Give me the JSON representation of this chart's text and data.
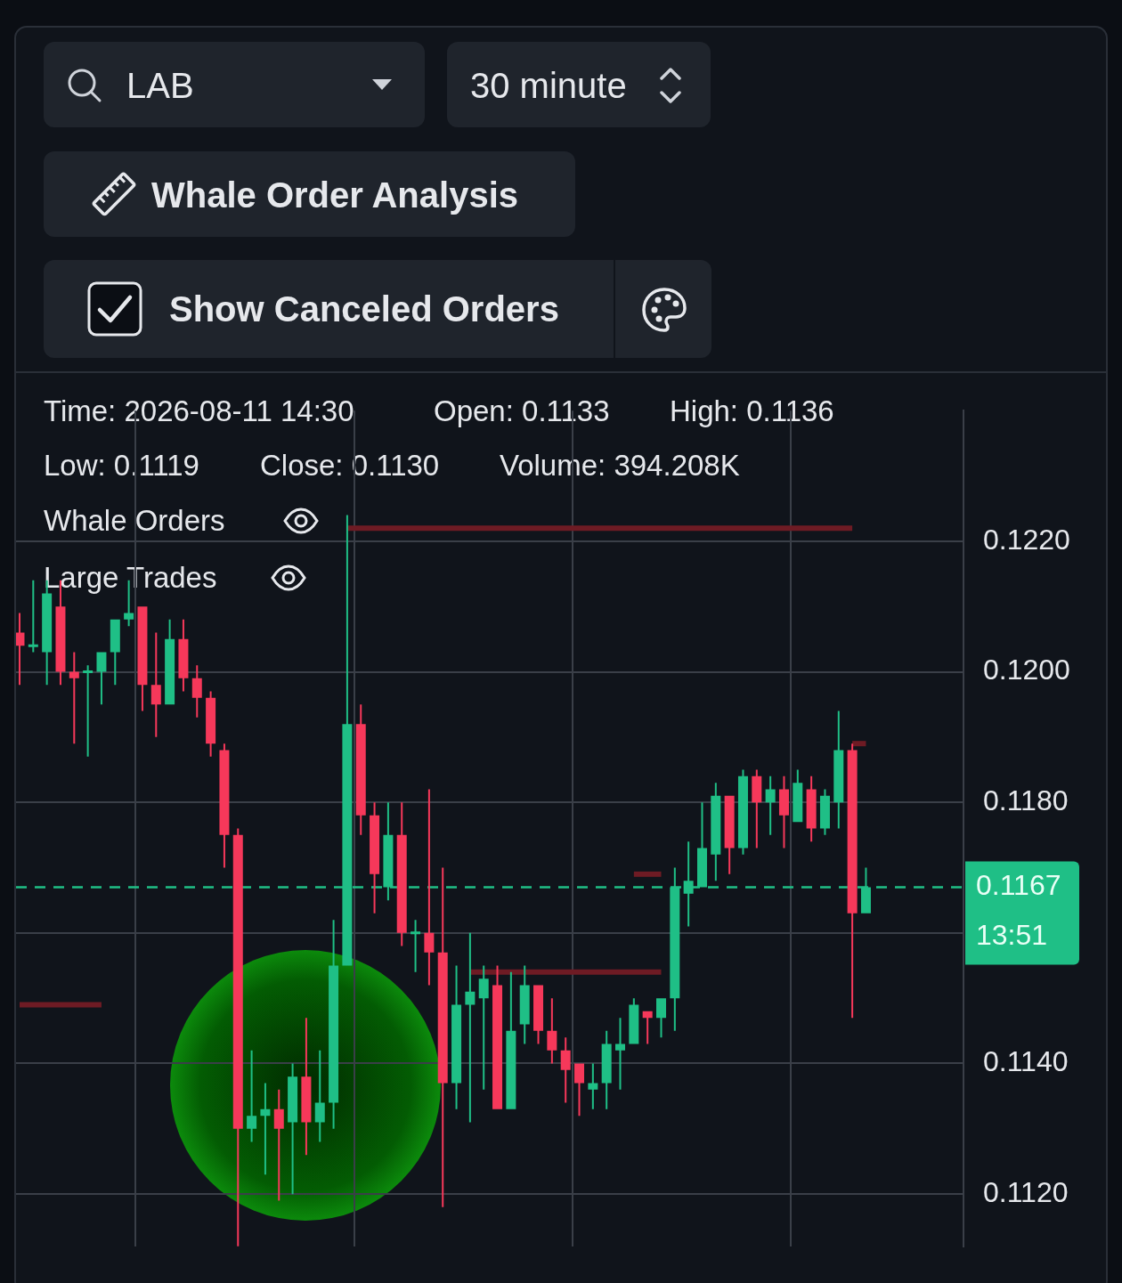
{
  "chart_data": {
    "type": "candlestick",
    "categories": [
      null,
      null,
      null,
      null,
      null,
      null,
      null,
      null,
      null,
      null,
      null,
      null,
      null,
      null,
      null,
      null,
      null,
      null,
      null,
      null,
      null,
      null,
      null,
      null,
      null,
      null,
      null,
      null,
      null,
      null,
      null,
      null,
      null,
      null,
      null,
      null,
      null,
      null,
      null,
      null,
      null,
      null,
      null,
      null,
      null,
      null,
      null,
      null,
      null,
      null,
      null,
      null,
      null,
      null,
      null,
      null,
      null,
      null,
      null,
      null,
      null,
      null,
      null
    ],
    "ohlc": [
      [
        0.1206,
        0.1209,
        0.1198,
        0.1204
      ],
      [
        0.1204,
        0.1214,
        0.1203,
        0.1204
      ],
      [
        0.1203,
        0.1214,
        0.1198,
        0.1212
      ],
      [
        0.121,
        0.1214,
        0.1198,
        0.12
      ],
      [
        0.12,
        0.1203,
        0.1189,
        0.1199
      ],
      [
        0.12,
        0.1201,
        0.1187,
        0.12
      ],
      [
        0.12,
        0.1203,
        0.1195,
        0.1203
      ],
      [
        0.1203,
        0.1208,
        0.1198,
        0.1208
      ],
      [
        0.1208,
        0.1214,
        0.1207,
        0.1209
      ],
      [
        0.121,
        0.121,
        0.1194,
        0.1198
      ],
      [
        0.1198,
        0.1206,
        0.119,
        0.1195
      ],
      [
        0.1195,
        0.1208,
        0.1195,
        0.1205
      ],
      [
        0.1205,
        0.1208,
        0.1197,
        0.1199
      ],
      [
        0.1199,
        0.1201,
        0.1193,
        0.1196
      ],
      [
        0.1196,
        0.1197,
        0.1187,
        0.1189
      ],
      [
        0.1188,
        0.1189,
        0.117,
        0.1175
      ],
      [
        0.1175,
        0.1176,
        0.1112,
        0.113
      ],
      [
        0.113,
        0.1142,
        0.1128,
        0.1132
      ],
      [
        0.1132,
        0.1137,
        0.1123,
        0.1133
      ],
      [
        0.1133,
        0.1136,
        0.1119,
        0.113
      ],
      [
        0.1131,
        0.114,
        0.112,
        0.1138
      ],
      [
        0.1138,
        0.1147,
        0.1126,
        0.1131
      ],
      [
        0.1131,
        0.1142,
        0.1128,
        0.1134
      ],
      [
        0.1134,
        0.1162,
        0.113,
        0.1155
      ],
      [
        0.1155,
        0.1224,
        0.1155,
        0.1192
      ],
      [
        0.1192,
        0.1195,
        0.1175,
        0.1178
      ],
      [
        0.1178,
        0.118,
        0.1163,
        0.1169
      ],
      [
        0.1167,
        0.118,
        0.1165,
        0.1175
      ],
      [
        0.1175,
        0.118,
        0.1158,
        0.116
      ],
      [
        0.116,
        0.1162,
        0.1154,
        0.116
      ],
      [
        0.116,
        0.1182,
        0.1152,
        0.1157
      ],
      [
        0.1157,
        0.117,
        0.1118,
        0.1137
      ],
      [
        0.1137,
        0.1155,
        0.1133,
        0.1149
      ],
      [
        0.1149,
        0.116,
        0.1131,
        0.1151
      ],
      [
        0.115,
        0.1155,
        0.1136,
        0.1153
      ],
      [
        0.1152,
        0.1155,
        0.1133,
        0.1133
      ],
      [
        0.1133,
        0.1154,
        0.1133,
        0.1145
      ],
      [
        0.1146,
        0.1155,
        0.1143,
        0.1152
      ],
      [
        0.1152,
        0.1152,
        0.1143,
        0.1145
      ],
      [
        0.1145,
        0.115,
        0.114,
        0.1142
      ],
      [
        0.1142,
        0.1144,
        0.1134,
        0.1139
      ],
      [
        0.114,
        0.114,
        0.1132,
        0.1137
      ],
      [
        0.1136,
        0.114,
        0.1133,
        0.1137
      ],
      [
        0.1137,
        0.1145,
        0.1133,
        0.1143
      ],
      [
        0.1142,
        0.1147,
        0.1136,
        0.1143
      ],
      [
        0.1143,
        0.115,
        0.1143,
        0.1149
      ],
      [
        0.1148,
        0.1148,
        0.1143,
        0.1147
      ],
      [
        0.1147,
        0.115,
        0.1144,
        0.115
      ],
      [
        0.115,
        0.117,
        0.1145,
        0.1167
      ],
      [
        0.1166,
        0.1174,
        0.1161,
        0.1168
      ],
      [
        0.1167,
        0.118,
        0.1167,
        0.1173
      ],
      [
        0.1172,
        0.1183,
        0.1168,
        0.1181
      ],
      [
        0.1181,
        0.1181,
        0.1169,
        0.1173
      ],
      [
        0.1173,
        0.1185,
        0.1172,
        0.1184
      ],
      [
        0.1184,
        0.1185,
        0.1173,
        0.118
      ],
      [
        0.118,
        0.1184,
        0.1175,
        0.1182
      ],
      [
        0.1182,
        0.1184,
        0.1173,
        0.1178
      ],
      [
        0.1177,
        0.1185,
        0.1177,
        0.1183
      ],
      [
        0.1182,
        0.1184,
        0.1174,
        0.1176
      ],
      [
        0.1176,
        0.1182,
        0.1175,
        0.1181
      ],
      [
        0.118,
        0.1194,
        0.1176,
        0.1188
      ],
      [
        0.1188,
        0.1189,
        0.1147,
        0.1163
      ],
      [
        0.1163,
        0.117,
        0.1163,
        0.1167
      ]
    ],
    "series": [
      {
        "type": "line",
        "color": "#6e1b24",
        "values": [
          null,
          null,
          null,
          null,
          null,
          null,
          null,
          null,
          null,
          null,
          null,
          null,
          null,
          null,
          null,
          null,
          null,
          null,
          null,
          null,
          null,
          null,
          null,
          null,
          0.1222,
          0.1222,
          0.1222,
          0.1222,
          0.1222,
          0.1222,
          0.1222,
          0.1222,
          0.1222,
          0.1222,
          0.1222,
          0.1222,
          0.1222,
          0.1222,
          0.1222,
          0.1222,
          0.1222,
          0.1222,
          0.1222,
          0.1222,
          0.1222,
          0.1222,
          0.1222,
          0.1222,
          0.1222,
          0.1222,
          0.1222,
          0.1222,
          0.1222,
          0.1222,
          0.1222,
          0.1222,
          0.1222,
          0.1222,
          0.1222,
          0.1222,
          0.1222,
          0.1222,
          null
        ]
      },
      {
        "type": "line",
        "color": "#6e1b24",
        "values": [
          0.1149,
          0.1149,
          0.1149,
          0.1149,
          0.1149,
          0.1149,
          0.1149,
          null,
          null,
          null,
          null,
          null,
          null,
          null,
          null,
          null,
          null,
          null,
          null,
          null,
          null,
          null,
          null,
          null,
          null,
          null,
          null,
          null,
          null,
          null,
          null,
          null,
          null,
          null,
          null,
          null,
          null,
          null,
          null,
          null,
          null,
          null,
          null,
          null,
          null,
          null,
          null,
          null,
          null,
          null,
          null,
          null,
          null,
          null,
          null,
          null,
          null,
          null,
          null,
          null,
          null,
          null,
          null
        ]
      },
      {
        "type": "line",
        "color": "#6e1b24",
        "values": [
          null,
          null,
          null,
          null,
          null,
          null,
          null,
          null,
          null,
          null,
          null,
          null,
          null,
          null,
          null,
          null,
          null,
          null,
          null,
          null,
          null,
          null,
          null,
          null,
          null,
          null,
          null,
          null,
          null,
          null,
          null,
          null,
          null,
          0.1154,
          0.1154,
          0.1154,
          0.1154,
          0.1154,
          0.1154,
          0.1154,
          0.1154,
          0.1154,
          0.1154,
          0.1154,
          0.1154,
          0.1154,
          0.1154,
          0.1154,
          null,
          null,
          null,
          null,
          null,
          null,
          null,
          null,
          null,
          null,
          null,
          null,
          null,
          null,
          null
        ]
      },
      {
        "type": "line",
        "color": "#6e1b24",
        "values": [
          null,
          null,
          null,
          null,
          null,
          null,
          null,
          null,
          null,
          null,
          null,
          null,
          null,
          null,
          null,
          null,
          null,
          null,
          null,
          null,
          null,
          null,
          null,
          null,
          null,
          null,
          null,
          null,
          null,
          null,
          null,
          null,
          null,
          null,
          null,
          null,
          null,
          null,
          null,
          null,
          null,
          null,
          null,
          null,
          null,
          0.1169,
          0.1169,
          0.1169,
          null,
          null,
          null,
          null,
          null,
          null,
          null,
          null,
          null,
          null,
          null,
          null,
          null,
          null,
          null
        ]
      },
      {
        "type": "line",
        "color": "#6e1b24",
        "values": [
          null,
          null,
          null,
          null,
          null,
          null,
          null,
          null,
          null,
          null,
          null,
          null,
          null,
          null,
          null,
          null,
          null,
          null,
          null,
          null,
          null,
          null,
          null,
          null,
          null,
          null,
          null,
          null,
          null,
          null,
          null,
          null,
          null,
          null,
          null,
          null,
          null,
          null,
          null,
          null,
          null,
          null,
          null,
          null,
          null,
          null,
          null,
          null,
          null,
          null,
          null,
          null,
          null,
          null,
          null,
          null,
          null,
          null,
          null,
          null,
          null,
          0.1189,
          0.1189
        ]
      }
    ],
    "marker": "none",
    "ylim": [
      0.1112,
      0.124
    ],
    "yticks": [
      {
        "value": 0.112,
        "label": "0.1120"
      },
      {
        "value": 0.114,
        "label": "0.1140"
      },
      {
        "value": 0.116,
        "label": null
      },
      {
        "value": 0.118,
        "label": "0.1180"
      },
      {
        "value": 0.12,
        "label": "0.1200"
      },
      {
        "value": 0.122,
        "label": "0.1220"
      }
    ],
    "grid": true,
    "tick_labels": "y",
    "ref_lines": [
      {
        "axis": "y",
        "value": 0.1167,
        "label": "0.1167\n13:51",
        "color": "#1fbf86",
        "line_style": "dashed"
      }
    ],
    "annotations": [
      "LAB",
      "30 minute",
      "Whale Order Analysis",
      "Show Canceled Orders",
      "Time: 2026-08-11 14:30",
      "Open: 0.1133",
      "High: 0.1136",
      "Low: 0.1119",
      "Close: 0.1130",
      "Volume: 394.208K",
      "Whale Orders",
      "Large Trades"
    ]
  }
}
